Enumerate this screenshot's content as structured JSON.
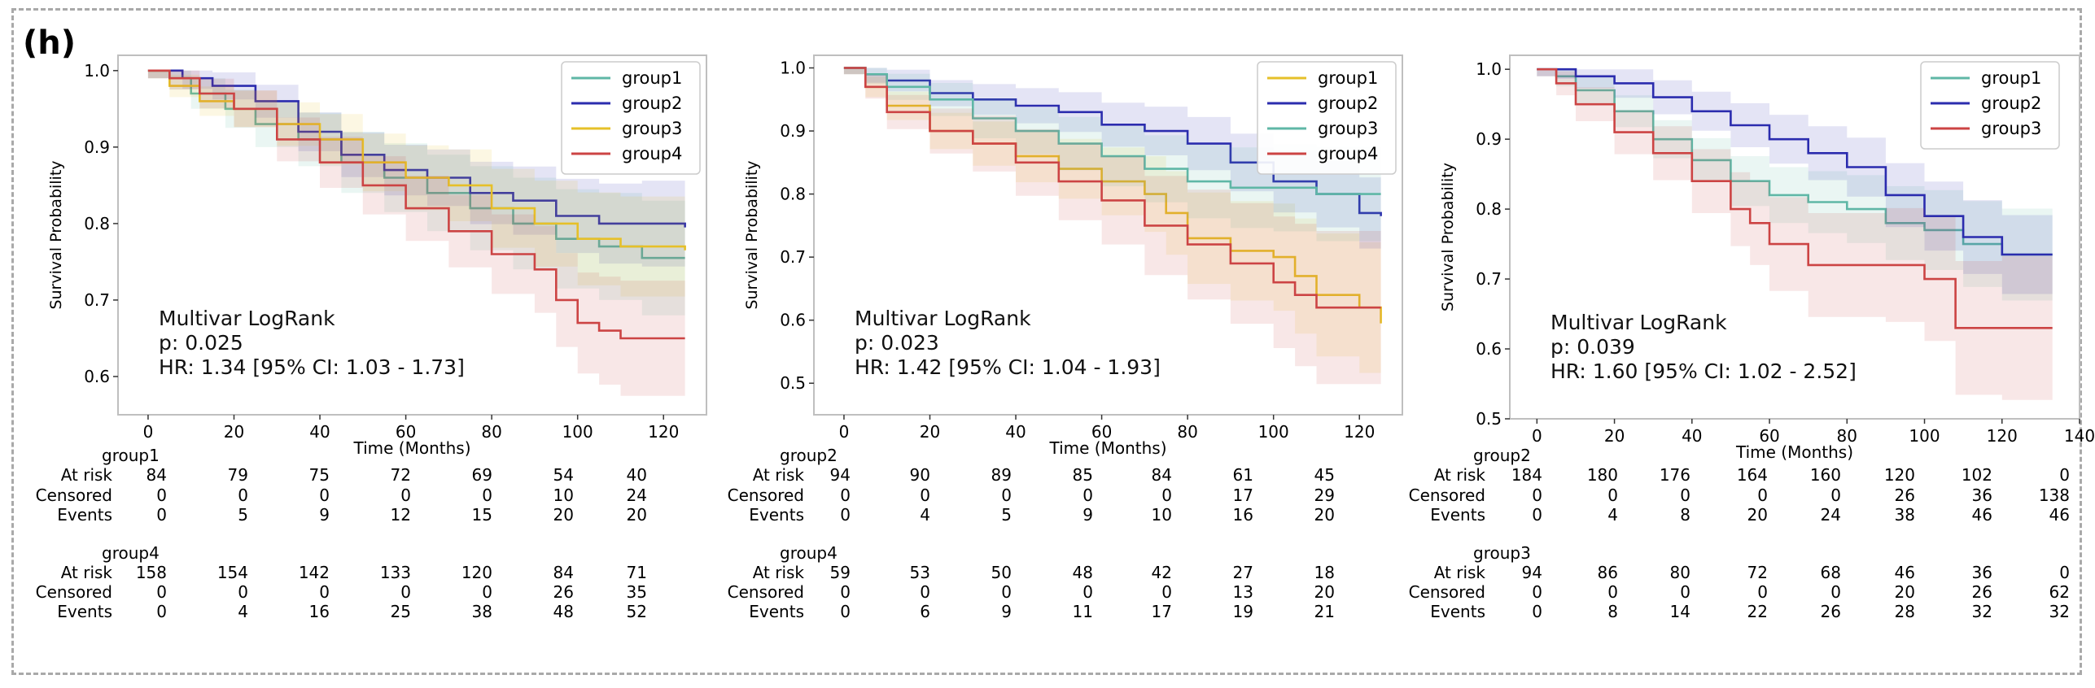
{
  "panel_label": "(h)",
  "chart_data": [
    {
      "type": "line",
      "subtype": "kaplan-meier",
      "xlabel": "Time (Months)",
      "ylabel": "Survival Probability",
      "xlim": [
        -7,
        130
      ],
      "ylim": [
        0.55,
        1.02
      ],
      "xticks": [
        0,
        20,
        40,
        60,
        80,
        100,
        120
      ],
      "yticks": [
        0.6,
        0.7,
        0.8,
        0.9,
        1.0
      ],
      "xtick_labels": [
        "0",
        "20",
        "40",
        "60",
        "80",
        "100",
        "120"
      ],
      "ytick_labels": [
        "0.6",
        "0.7",
        "0.8",
        "0.9",
        "1.0"
      ],
      "legend_position": "top-right",
      "annotation": [
        "Multivar LogRank",
        "p: 0.025",
        "HR: 1.34 [95% CI: 1.03 - 1.73]"
      ],
      "series": [
        {
          "name": "group1",
          "color": "#5fb7a6",
          "band": 0.07,
          "x": [
            0,
            5,
            10,
            18,
            25,
            35,
            45,
            55,
            65,
            75,
            85,
            95,
            105,
            115,
            125
          ],
          "y": [
            1.0,
            0.99,
            0.97,
            0.95,
            0.93,
            0.91,
            0.88,
            0.86,
            0.84,
            0.82,
            0.8,
            0.78,
            0.77,
            0.755,
            0.755
          ]
        },
        {
          "name": "group2",
          "color": "#2b2cae",
          "band": 0.05,
          "x": [
            0,
            8,
            15,
            25,
            35,
            45,
            55,
            65,
            75,
            85,
            95,
            105,
            115,
            125
          ],
          "y": [
            1.0,
            0.99,
            0.98,
            0.96,
            0.92,
            0.89,
            0.87,
            0.86,
            0.84,
            0.83,
            0.81,
            0.8,
            0.8,
            0.795
          ]
        },
        {
          "name": "group3",
          "color": "#e6c029",
          "band": 0.06,
          "x": [
            0,
            5,
            12,
            20,
            30,
            40,
            50,
            60,
            70,
            80,
            90,
            100,
            110,
            125
          ],
          "y": [
            1.0,
            0.98,
            0.96,
            0.95,
            0.93,
            0.91,
            0.88,
            0.86,
            0.85,
            0.82,
            0.8,
            0.78,
            0.77,
            0.765
          ]
        },
        {
          "name": "group4",
          "color": "#cc4444",
          "band": 0.07,
          "x": [
            0,
            5,
            12,
            20,
            30,
            40,
            50,
            60,
            70,
            80,
            90,
            95,
            100,
            105,
            110,
            125
          ],
          "y": [
            1.0,
            0.99,
            0.97,
            0.95,
            0.91,
            0.88,
            0.85,
            0.82,
            0.79,
            0.76,
            0.74,
            0.7,
            0.67,
            0.66,
            0.65,
            0.65
          ]
        }
      ],
      "risk_tables": [
        {
          "group": "group1",
          "rows": [
            {
              "label": "At risk",
              "values": [
                "84",
                "79",
                "75",
                "72",
                "69",
                "54",
                "40"
              ]
            },
            {
              "label": "Censored",
              "values": [
                "0",
                "0",
                "0",
                "0",
                "0",
                "10",
                "24"
              ]
            },
            {
              "label": "Events",
              "values": [
                "0",
                "5",
                "9",
                "12",
                "15",
                "20",
                "20"
              ]
            }
          ]
        },
        {
          "group": "group4",
          "rows": [
            {
              "label": "At risk",
              "values": [
                "158",
                "154",
                "142",
                "133",
                "120",
                "84",
                "71"
              ]
            },
            {
              "label": "Censored",
              "values": [
                "0",
                "0",
                "0",
                "0",
                "0",
                "26",
                "35"
              ]
            },
            {
              "label": "Events",
              "values": [
                "0",
                "4",
                "16",
                "25",
                "38",
                "48",
                "52"
              ]
            }
          ]
        }
      ]
    },
    {
      "type": "line",
      "subtype": "kaplan-meier",
      "xlabel": "Time (Months)",
      "ylabel": "Survival Probability",
      "xlim": [
        -7,
        130
      ],
      "ylim": [
        0.45,
        1.02
      ],
      "xticks": [
        0,
        20,
        40,
        60,
        80,
        100,
        120
      ],
      "yticks": [
        0.5,
        0.6,
        0.7,
        0.8,
        0.9,
        1.0
      ],
      "xtick_labels": [
        "0",
        "20",
        "40",
        "60",
        "80",
        "100",
        "120"
      ],
      "ytick_labels": [
        "0.5",
        "0.6",
        "0.7",
        "0.8",
        "0.9",
        "1.0"
      ],
      "legend_position": "top-right",
      "annotation": [
        "Multivar LogRank",
        "p: 0.023",
        "HR: 1.42 [95% CI: 1.04 - 1.93]"
      ],
      "series": [
        {
          "name": "group1",
          "color": "#e6c029",
          "band": 0.1,
          "x": [
            0,
            5,
            10,
            20,
            30,
            40,
            50,
            60,
            70,
            75,
            80,
            90,
            100,
            105,
            110,
            120,
            125
          ],
          "y": [
            1.0,
            0.97,
            0.94,
            0.9,
            0.88,
            0.86,
            0.84,
            0.82,
            0.8,
            0.77,
            0.73,
            0.71,
            0.7,
            0.67,
            0.64,
            0.62,
            0.595
          ]
        },
        {
          "name": "group2",
          "color": "#2b2cae",
          "band": 0.05,
          "x": [
            0,
            5,
            10,
            20,
            30,
            40,
            50,
            60,
            70,
            80,
            90,
            100,
            110,
            120,
            125
          ],
          "y": [
            1.0,
            0.99,
            0.98,
            0.96,
            0.95,
            0.94,
            0.93,
            0.91,
            0.9,
            0.88,
            0.85,
            0.82,
            0.8,
            0.77,
            0.765
          ]
        },
        {
          "name": "group3",
          "color": "#5fb7a6",
          "band": 0.07,
          "x": [
            0,
            5,
            10,
            20,
            30,
            40,
            50,
            60,
            70,
            80,
            90,
            100,
            110,
            125
          ],
          "y": [
            1.0,
            0.99,
            0.97,
            0.95,
            0.92,
            0.9,
            0.88,
            0.86,
            0.84,
            0.82,
            0.81,
            0.81,
            0.8,
            0.8
          ]
        },
        {
          "name": "group4",
          "color": "#cc4444",
          "band": 0.12,
          "x": [
            0,
            5,
            10,
            20,
            30,
            40,
            50,
            60,
            70,
            80,
            90,
            100,
            105,
            110,
            125
          ],
          "y": [
            1.0,
            0.97,
            0.93,
            0.9,
            0.88,
            0.85,
            0.82,
            0.79,
            0.75,
            0.72,
            0.69,
            0.66,
            0.64,
            0.62,
            0.62
          ]
        }
      ],
      "risk_tables": [
        {
          "group": "group2",
          "rows": [
            {
              "label": "At risk",
              "values": [
                "94",
                "90",
                "89",
                "85",
                "84",
                "61",
                "45"
              ]
            },
            {
              "label": "Censored",
              "values": [
                "0",
                "0",
                "0",
                "0",
                "0",
                "17",
                "29"
              ]
            },
            {
              "label": "Events",
              "values": [
                "0",
                "4",
                "5",
                "9",
                "10",
                "16",
                "20"
              ]
            }
          ]
        },
        {
          "group": "group4",
          "rows": [
            {
              "label": "At risk",
              "values": [
                "59",
                "53",
                "50",
                "48",
                "42",
                "27",
                "18"
              ]
            },
            {
              "label": "Censored",
              "values": [
                "0",
                "0",
                "0",
                "0",
                "0",
                "13",
                "20"
              ]
            },
            {
              "label": "Events",
              "values": [
                "0",
                "6",
                "9",
                "11",
                "17",
                "19",
                "21"
              ]
            }
          ]
        }
      ]
    },
    {
      "type": "line",
      "subtype": "kaplan-meier",
      "xlabel": "Time (Months)",
      "ylabel": "Survival Probability",
      "xlim": [
        -7,
        140
      ],
      "ylim": [
        0.5,
        1.02
      ],
      "xticks": [
        0,
        20,
        40,
        60,
        80,
        100,
        120,
        140
      ],
      "yticks": [
        0.5,
        0.6,
        0.7,
        0.8,
        0.9,
        1.0
      ],
      "xtick_labels": [
        "0",
        "20",
        "40",
        "60",
        "80",
        "100",
        "120",
        "140"
      ],
      "ytick_labels": [
        "0.5",
        "0.6",
        "0.7",
        "0.8",
        "0.9",
        "1.0"
      ],
      "legend_position": "top-right",
      "annotation": [
        "Multivar LogRank",
        "p: 0.039",
        "HR: 1.60 [95% CI: 1.02 - 2.52]"
      ],
      "series": [
        {
          "name": "group1",
          "color": "#5fb7a6",
          "band": 0.06,
          "x": [
            0,
            5,
            10,
            20,
            30,
            40,
            50,
            60,
            70,
            80,
            90,
            100,
            110,
            120,
            133
          ],
          "y": [
            1.0,
            0.99,
            0.97,
            0.94,
            0.9,
            0.87,
            0.84,
            0.82,
            0.81,
            0.8,
            0.78,
            0.77,
            0.75,
            0.735,
            0.735
          ]
        },
        {
          "name": "group2",
          "color": "#2b2cae",
          "band": 0.05,
          "x": [
            0,
            5,
            10,
            20,
            30,
            40,
            50,
            60,
            70,
            80,
            90,
            100,
            110,
            120,
            133
          ],
          "y": [
            1.0,
            1.0,
            0.99,
            0.98,
            0.96,
            0.94,
            0.92,
            0.9,
            0.88,
            0.86,
            0.82,
            0.79,
            0.76,
            0.735,
            0.735
          ]
        },
        {
          "name": "group3",
          "color": "#cc4444",
          "band": 0.1,
          "x": [
            0,
            5,
            10,
            20,
            30,
            40,
            50,
            55,
            60,
            70,
            90,
            100,
            108,
            120,
            133
          ],
          "y": [
            1.0,
            0.98,
            0.95,
            0.91,
            0.88,
            0.84,
            0.8,
            0.78,
            0.75,
            0.72,
            0.72,
            0.7,
            0.63,
            0.63,
            0.63
          ]
        }
      ],
      "risk_tables": [
        {
          "group": "group2",
          "rows": [
            {
              "label": "At risk",
              "values": [
                "184",
                "180",
                "176",
                "164",
                "160",
                "120",
                "102",
                "0"
              ]
            },
            {
              "label": "Censored",
              "values": [
                "0",
                "0",
                "0",
                "0",
                "0",
                "26",
                "36",
                "138"
              ]
            },
            {
              "label": "Events",
              "values": [
                "0",
                "4",
                "8",
                "20",
                "24",
                "38",
                "46",
                "46"
              ]
            }
          ]
        },
        {
          "group": "group3",
          "rows": [
            {
              "label": "At risk",
              "values": [
                "94",
                "86",
                "80",
                "72",
                "68",
                "46",
                "36",
                "0"
              ]
            },
            {
              "label": "Censored",
              "values": [
                "0",
                "0",
                "0",
                "0",
                "0",
                "20",
                "26",
                "62"
              ]
            },
            {
              "label": "Events",
              "values": [
                "0",
                "8",
                "14",
                "22",
                "26",
                "28",
                "32",
                "32"
              ]
            }
          ]
        }
      ]
    }
  ]
}
